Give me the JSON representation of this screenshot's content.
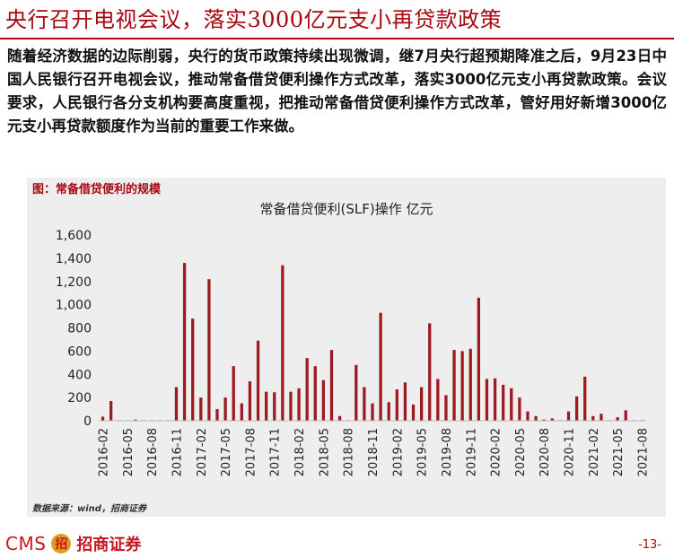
{
  "title": "央行召开电视会议，落实3000亿元支小再贷款政策",
  "body": "随着经济数据的边际削弱，央行的货币政策持续出现微调，继7月央行超预期降准之后，9月23日中国人民银行召开电视会议，推动常备借贷便利操作方式改革，落实3000亿元支小再贷款政策。会议要求，人民银行各分支机构要高度重视，把推动常备借贷便利操作方式改革，管好用好新增3000亿元支小再贷款额度作为当前的重要工作来做。",
  "chart_caption": "图：常备借贷便利的规模",
  "source": "数据来源：wind，招商证券",
  "logo": {
    "cms": "CMS",
    "mark": "招",
    "name": "招商证券"
  },
  "page_number": "-13-",
  "colors": {
    "accent": "#a8070f",
    "bar": "#9b1b20"
  },
  "chart_data": {
    "type": "bar",
    "title": "常备借贷便利(SLF)操作 亿元",
    "ylim": [
      0,
      1600
    ],
    "yticks": [
      0,
      200,
      400,
      600,
      800,
      1000,
      1200,
      1400,
      1600
    ],
    "ytick_labels": [
      "0",
      "200",
      "400",
      "600",
      "800",
      "1,000",
      "1,200",
      "1,400",
      "1,600"
    ],
    "xtick_labels": [
      "2016-02",
      "2016-05",
      "2016-08",
      "2016-11",
      "2017-02",
      "2017-05",
      "2017-08",
      "2017-11",
      "2018-02",
      "2018-05",
      "2018-08",
      "2018-11",
      "2019-02",
      "2019-05",
      "2019-08",
      "2019-11",
      "2020-02",
      "2020-05",
      "2020-08",
      "2020-11",
      "2021-02",
      "2021-05",
      "2021-08"
    ],
    "categories": [
      "2016-02",
      "2016-03",
      "2016-04",
      "2016-05",
      "2016-06",
      "2016-07",
      "2016-08",
      "2016-09",
      "2016-10",
      "2016-11",
      "2016-12",
      "2017-01",
      "2017-02",
      "2017-03",
      "2017-04",
      "2017-05",
      "2017-06",
      "2017-07",
      "2017-08",
      "2017-09",
      "2017-10",
      "2017-11",
      "2017-12",
      "2018-01",
      "2018-02",
      "2018-03",
      "2018-04",
      "2018-05",
      "2018-06",
      "2018-07",
      "2018-08",
      "2018-09",
      "2018-10",
      "2018-11",
      "2018-12",
      "2019-01",
      "2019-02",
      "2019-03",
      "2019-04",
      "2019-05",
      "2019-06",
      "2019-07",
      "2019-08",
      "2019-09",
      "2019-10",
      "2019-11",
      "2019-12",
      "2020-01",
      "2020-02",
      "2020-03",
      "2020-04",
      "2020-05",
      "2020-06",
      "2020-07",
      "2020-08",
      "2020-09",
      "2020-10",
      "2020-11",
      "2020-12",
      "2021-01",
      "2021-02",
      "2021-03",
      "2021-04",
      "2021-05",
      "2021-06",
      "2021-07",
      "2021-08"
    ],
    "values": [
      35,
      170,
      5,
      5,
      10,
      5,
      5,
      5,
      5,
      290,
      1360,
      880,
      200,
      1220,
      100,
      200,
      470,
      150,
      340,
      690,
      250,
      245,
      1340,
      250,
      280,
      540,
      470,
      350,
      610,
      40,
      5,
      480,
      290,
      150,
      930,
      160,
      270,
      330,
      140,
      290,
      840,
      360,
      220,
      610,
      600,
      620,
      1060,
      360,
      365,
      310,
      280,
      200,
      80,
      40,
      10,
      20,
      5,
      80,
      210,
      380,
      40,
      60,
      5,
      30,
      90,
      5,
      5
    ]
  }
}
